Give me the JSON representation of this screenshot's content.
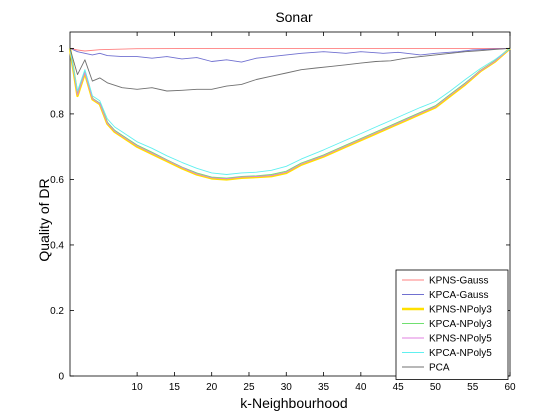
{
  "chart_data": {
    "type": "line",
    "title": "Sonar",
    "xlabel": "k-Neighbourhood",
    "ylabel": "Quality of DR",
    "xlim": [
      1,
      60
    ],
    "ylim": [
      0,
      1.05
    ],
    "xticks": [
      10,
      15,
      20,
      25,
      30,
      35,
      40,
      45,
      50,
      55,
      60
    ],
    "yticks": [
      0,
      0.2,
      0.4,
      0.6,
      0.8,
      1
    ],
    "ytick_labels": [
      "0",
      "0.2",
      "0.4",
      "0.6",
      "0.8",
      "1"
    ],
    "grid": false,
    "legend_position": "bottom-right",
    "series": [
      {
        "name": "KPNS-Gauss",
        "color": "#ff8080",
        "x": [
          1,
          2,
          3,
          5,
          10,
          20,
          30,
          40,
          50,
          60
        ],
        "y": [
          1.0,
          0.995,
          0.992,
          0.996,
          0.999,
          1.0,
          1.0,
          1.0,
          1.0,
          1.0
        ]
      },
      {
        "name": "KPCA-Gauss",
        "color": "#7070d0",
        "x": [
          1,
          2,
          3,
          4,
          5,
          6,
          8,
          10,
          12,
          14,
          16,
          18,
          20,
          22,
          24,
          26,
          28,
          30,
          32,
          35,
          38,
          40,
          43,
          45,
          48,
          50,
          53,
          55,
          58,
          60
        ],
        "y": [
          1.0,
          0.99,
          0.985,
          0.98,
          0.985,
          0.978,
          0.975,
          0.975,
          0.97,
          0.975,
          0.968,
          0.972,
          0.96,
          0.965,
          0.958,
          0.97,
          0.975,
          0.98,
          0.985,
          0.99,
          0.985,
          0.99,
          0.985,
          0.988,
          0.98,
          0.985,
          0.99,
          0.995,
          0.998,
          1.0
        ]
      },
      {
        "name": "KPNS-NPoly3",
        "color": "#ffe000",
        "x": [
          1,
          2,
          3,
          4,
          5,
          6,
          7,
          8,
          10,
          12,
          14,
          16,
          18,
          20,
          22,
          24,
          26,
          28,
          30,
          32,
          35,
          38,
          40,
          42,
          44,
          46,
          48,
          50,
          52,
          54,
          56,
          58,
          60
        ],
        "y": [
          1.0,
          0.855,
          0.925,
          0.845,
          0.83,
          0.77,
          0.745,
          0.73,
          0.7,
          0.678,
          0.656,
          0.634,
          0.615,
          0.603,
          0.6,
          0.605,
          0.607,
          0.61,
          0.62,
          0.645,
          0.67,
          0.7,
          0.72,
          0.74,
          0.76,
          0.78,
          0.8,
          0.82,
          0.855,
          0.89,
          0.93,
          0.96,
          1.0
        ]
      },
      {
        "name": "KPCA-NPoly3",
        "color": "#70e070",
        "x": [
          1,
          2,
          3,
          4,
          5,
          6,
          7,
          8,
          10,
          12,
          14,
          16,
          18,
          20,
          22,
          24,
          26,
          28,
          30,
          32,
          35,
          38,
          40,
          42,
          44,
          46,
          48,
          50,
          52,
          54,
          56,
          58,
          60
        ],
        "y": [
          1.0,
          0.86,
          0.928,
          0.848,
          0.833,
          0.775,
          0.75,
          0.735,
          0.705,
          0.683,
          0.66,
          0.638,
          0.62,
          0.607,
          0.604,
          0.609,
          0.611,
          0.615,
          0.625,
          0.65,
          0.675,
          0.705,
          0.725,
          0.745,
          0.765,
          0.785,
          0.805,
          0.825,
          0.86,
          0.895,
          0.932,
          0.962,
          1.0
        ]
      },
      {
        "name": "KPNS-NPoly5",
        "color": "#e080e0",
        "x": [
          1,
          2,
          3,
          4,
          5,
          6,
          7,
          8,
          10,
          12,
          14,
          16,
          18,
          20,
          22,
          24,
          26,
          28,
          30,
          32,
          35,
          38,
          40,
          42,
          44,
          46,
          48,
          50,
          52,
          54,
          56,
          58,
          60
        ],
        "y": [
          1.0,
          0.858,
          0.926,
          0.846,
          0.831,
          0.772,
          0.747,
          0.732,
          0.702,
          0.68,
          0.658,
          0.636,
          0.617,
          0.605,
          0.602,
          0.607,
          0.609,
          0.612,
          0.622,
          0.647,
          0.672,
          0.702,
          0.722,
          0.742,
          0.762,
          0.782,
          0.802,
          0.822,
          0.857,
          0.892,
          0.931,
          0.961,
          1.0
        ]
      },
      {
        "name": "KPCA-NPoly5",
        "color": "#60f0f0",
        "x": [
          1,
          2,
          3,
          4,
          5,
          6,
          7,
          8,
          10,
          12,
          14,
          16,
          18,
          20,
          22,
          24,
          26,
          28,
          30,
          32,
          35,
          38,
          40,
          42,
          44,
          46,
          48,
          50,
          52,
          54,
          56,
          58,
          60
        ],
        "y": [
          1.0,
          0.87,
          0.935,
          0.855,
          0.84,
          0.785,
          0.76,
          0.745,
          0.715,
          0.695,
          0.672,
          0.652,
          0.634,
          0.62,
          0.615,
          0.62,
          0.622,
          0.628,
          0.64,
          0.662,
          0.69,
          0.72,
          0.74,
          0.76,
          0.78,
          0.8,
          0.82,
          0.838,
          0.87,
          0.905,
          0.938,
          0.966,
          1.0
        ]
      },
      {
        "name": "PCA",
        "color": "#707070",
        "x": [
          1,
          2,
          3,
          4,
          5,
          6,
          8,
          10,
          12,
          14,
          16,
          18,
          20,
          22,
          24,
          26,
          28,
          30,
          32,
          34,
          36,
          38,
          40,
          42,
          44,
          46,
          48,
          50,
          52,
          54,
          56,
          58,
          60
        ],
        "y": [
          1.0,
          0.92,
          0.965,
          0.9,
          0.91,
          0.895,
          0.88,
          0.875,
          0.88,
          0.87,
          0.872,
          0.875,
          0.875,
          0.885,
          0.89,
          0.905,
          0.915,
          0.925,
          0.935,
          0.94,
          0.945,
          0.95,
          0.955,
          0.96,
          0.962,
          0.97,
          0.975,
          0.98,
          0.985,
          0.99,
          0.993,
          0.997,
          1.0
        ]
      }
    ]
  }
}
